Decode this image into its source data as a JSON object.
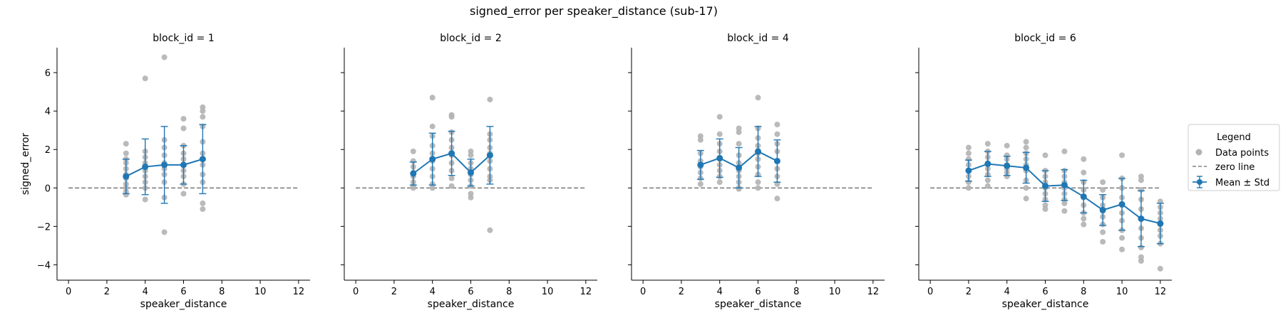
{
  "figure": {
    "title": "signed_error per speaker_distance (sub-17)"
  },
  "legend": {
    "title": "Legend",
    "items": [
      {
        "label": "Data points",
        "kind": "marker",
        "color": "#b3b3b3"
      },
      {
        "label": "zero line",
        "kind": "dashed-line",
        "color": "#808080"
      },
      {
        "label": "Mean ± Std",
        "kind": "errorbar-line",
        "color": "#1f77b4"
      }
    ]
  },
  "colors": {
    "mean": "#1f77b4",
    "points": "#b3b3b3",
    "zero": "#808080"
  },
  "chart_data": [
    {
      "type": "scatter",
      "title": "block_id = 1",
      "xlabel": "speaker_distance",
      "ylabel": "signed_error",
      "xlim": [
        -0.6,
        12.6
      ],
      "ylim": [
        -4.8,
        7.3
      ],
      "xticks": [
        0,
        2,
        4,
        6,
        8,
        10,
        12
      ],
      "yticks": [
        -4,
        -2,
        0,
        2,
        4,
        6
      ],
      "mean": [
        {
          "x": 3,
          "y": 0.6,
          "std": 0.9
        },
        {
          "x": 4,
          "y": 1.1,
          "std": 1.45
        },
        {
          "x": 5,
          "y": 1.2,
          "std": 2.0
        },
        {
          "x": 6,
          "y": 1.2,
          "std": 1.0
        },
        {
          "x": 7,
          "y": 1.5,
          "std": 1.8
        }
      ],
      "points": [
        {
          "x": 3,
          "ys": [
            2.3,
            1.8,
            1.5,
            1.3,
            1.0,
            0.7,
            0.5,
            0.2,
            0.0,
            -0.2,
            -0.35
          ]
        },
        {
          "x": 4,
          "ys": [
            5.7,
            1.9,
            1.6,
            1.3,
            1.1,
            0.9,
            0.6,
            0.3,
            0.0,
            -0.6
          ]
        },
        {
          "x": 5,
          "ys": [
            6.8,
            2.5,
            2.1,
            1.7,
            1.3,
            1.0,
            0.7,
            0.3,
            -0.5,
            -2.3
          ]
        },
        {
          "x": 6,
          "ys": [
            3.6,
            3.1,
            2.2,
            1.8,
            1.5,
            1.2,
            0.9,
            0.6,
            0.2,
            -0.3
          ]
        },
        {
          "x": 7,
          "ys": [
            4.2,
            4.0,
            3.7,
            3.2,
            2.4,
            1.8,
            1.2,
            0.7,
            0.3,
            -0.8,
            -1.1
          ]
        }
      ]
    },
    {
      "type": "scatter",
      "title": "block_id = 2",
      "xlabel": "speaker_distance",
      "ylabel": "",
      "xlim": [
        -0.6,
        12.6
      ],
      "ylim": [
        -4.8,
        7.3
      ],
      "xticks": [
        0,
        2,
        4,
        6,
        8,
        10,
        12
      ],
      "yticks": [
        -4,
        -2,
        0,
        2,
        4,
        6
      ],
      "mean": [
        {
          "x": 3,
          "y": 0.75,
          "std": 0.6
        },
        {
          "x": 4,
          "y": 1.5,
          "std": 1.35
        },
        {
          "x": 5,
          "y": 1.8,
          "std": 1.15
        },
        {
          "x": 6,
          "y": 0.8,
          "std": 0.7
        },
        {
          "x": 7,
          "y": 1.7,
          "std": 1.5
        }
      ],
      "points": [
        {
          "x": 3,
          "ys": [
            1.9,
            1.4,
            1.1,
            0.8,
            0.6,
            0.3,
            0.1,
            0.0
          ]
        },
        {
          "x": 4,
          "ys": [
            4.7,
            3.2,
            2.7,
            2.2,
            1.8,
            1.4,
            1.0,
            0.6,
            0.2,
            0.0
          ]
        },
        {
          "x": 5,
          "ys": [
            3.8,
            3.7,
            2.9,
            2.5,
            2.1,
            1.7,
            1.3,
            0.9,
            0.5,
            0.1
          ]
        },
        {
          "x": 6,
          "ys": [
            1.9,
            1.7,
            1.3,
            1.0,
            0.7,
            0.4,
            0.1,
            -0.3,
            -0.5
          ]
        },
        {
          "x": 7,
          "ys": [
            4.6,
            2.8,
            2.5,
            2.1,
            1.8,
            1.4,
            1.0,
            0.6,
            0.4,
            -2.2
          ]
        }
      ]
    },
    {
      "type": "scatter",
      "title": "block_id = 4",
      "xlabel": "speaker_distance",
      "ylabel": "",
      "xlim": [
        -0.6,
        12.6
      ],
      "ylim": [
        -4.8,
        7.3
      ],
      "xticks": [
        0,
        2,
        4,
        6,
        8,
        10,
        12
      ],
      "yticks": [
        -4,
        -2,
        0,
        2,
        4,
        6
      ],
      "mean": [
        {
          "x": 3,
          "y": 1.2,
          "std": 0.75
        },
        {
          "x": 4,
          "y": 1.55,
          "std": 1.0
        },
        {
          "x": 5,
          "y": 1.05,
          "std": 1.05
        },
        {
          "x": 6,
          "y": 1.9,
          "std": 1.3
        },
        {
          "x": 7,
          "y": 1.4,
          "std": 1.1
        }
      ],
      "points": [
        {
          "x": 3,
          "ys": [
            2.7,
            2.5,
            1.8,
            1.4,
            1.1,
            0.8,
            0.5,
            0.2
          ]
        },
        {
          "x": 4,
          "ys": [
            3.7,
            2.8,
            2.3,
            1.9,
            1.5,
            1.2,
            0.9,
            0.6,
            0.3
          ]
        },
        {
          "x": 5,
          "ys": [
            3.1,
            2.9,
            2.3,
            1.7,
            1.3,
            0.9,
            0.6,
            0.3,
            0.0,
            -0.05
          ]
        },
        {
          "x": 6,
          "ys": [
            4.7,
            3.1,
            2.6,
            2.2,
            1.8,
            1.5,
            1.1,
            0.7,
            0.3,
            0.0
          ]
        },
        {
          "x": 7,
          "ys": [
            3.3,
            2.8,
            2.3,
            1.9,
            1.4,
            1.0,
            0.6,
            0.2,
            -0.55
          ]
        }
      ]
    },
    {
      "type": "scatter",
      "title": "block_id = 6",
      "xlabel": "speaker_distance",
      "ylabel": "",
      "xlim": [
        -0.6,
        12.6
      ],
      "ylim": [
        -4.8,
        7.3
      ],
      "xticks": [
        0,
        2,
        4,
        6,
        8,
        10,
        12
      ],
      "yticks": [
        -4,
        -2,
        0,
        2,
        4,
        6
      ],
      "mean": [
        {
          "x": 2,
          "y": 0.9,
          "std": 0.55
        },
        {
          "x": 3,
          "y": 1.25,
          "std": 0.65
        },
        {
          "x": 4,
          "y": 1.15,
          "std": 0.5
        },
        {
          "x": 5,
          "y": 1.05,
          "std": 0.8
        },
        {
          "x": 6,
          "y": 0.1,
          "std": 0.8
        },
        {
          "x": 7,
          "y": 0.15,
          "std": 0.8
        },
        {
          "x": 8,
          "y": -0.45,
          "std": 0.85
        },
        {
          "x": 9,
          "y": -1.15,
          "std": 0.8
        },
        {
          "x": 10,
          "y": -0.85,
          "std": 1.35
        },
        {
          "x": 11,
          "y": -1.6,
          "std": 1.45
        },
        {
          "x": 12,
          "y": -1.85,
          "std": 1.05
        }
      ],
      "points": [
        {
          "x": 2,
          "ys": [
            2.1,
            1.8,
            1.5,
            1.2,
            0.9,
            0.6,
            0.3,
            0.0
          ]
        },
        {
          "x": 3,
          "ys": [
            2.3,
            1.9,
            1.6,
            1.3,
            1.0,
            0.7,
            0.4,
            0.1
          ]
        },
        {
          "x": 4,
          "ys": [
            2.2,
            1.7,
            1.5,
            1.2,
            1.0,
            0.8,
            0.6
          ]
        },
        {
          "x": 5,
          "ys": [
            2.4,
            2.1,
            1.8,
            1.5,
            1.2,
            0.9,
            0.4,
            0.0,
            -0.55
          ]
        },
        {
          "x": 6,
          "ys": [
            1.7,
            0.9,
            0.6,
            0.3,
            0.0,
            -0.3,
            -0.6,
            -0.9,
            -1.1
          ]
        },
        {
          "x": 7,
          "ys": [
            1.9,
            0.9,
            0.6,
            0.3,
            0.0,
            -0.3,
            -0.6,
            -0.8,
            -1.2
          ]
        },
        {
          "x": 8,
          "ys": [
            1.5,
            0.8,
            0.3,
            -0.1,
            -0.5,
            -0.9,
            -1.3,
            -1.6,
            -1.9
          ]
        },
        {
          "x": 9,
          "ys": [
            0.3,
            -0.1,
            -0.5,
            -0.9,
            -1.2,
            -1.5,
            -1.9,
            -2.3,
            -2.8
          ]
        },
        {
          "x": 10,
          "ys": [
            1.7,
            0.5,
            0.0,
            -0.5,
            -0.9,
            -1.3,
            -1.7,
            -2.2,
            -2.6,
            -3.2
          ]
        },
        {
          "x": 11,
          "ys": [
            0.6,
            0.4,
            -0.1,
            -0.6,
            -1.1,
            -1.6,
            -2.1,
            -2.6,
            -3.1,
            -3.6,
            -3.8
          ]
        },
        {
          "x": 12,
          "ys": [
            -0.7,
            -1.0,
            -1.3,
            -1.6,
            -1.9,
            -2.2,
            -2.5,
            -2.9,
            -4.2
          ]
        }
      ]
    }
  ]
}
